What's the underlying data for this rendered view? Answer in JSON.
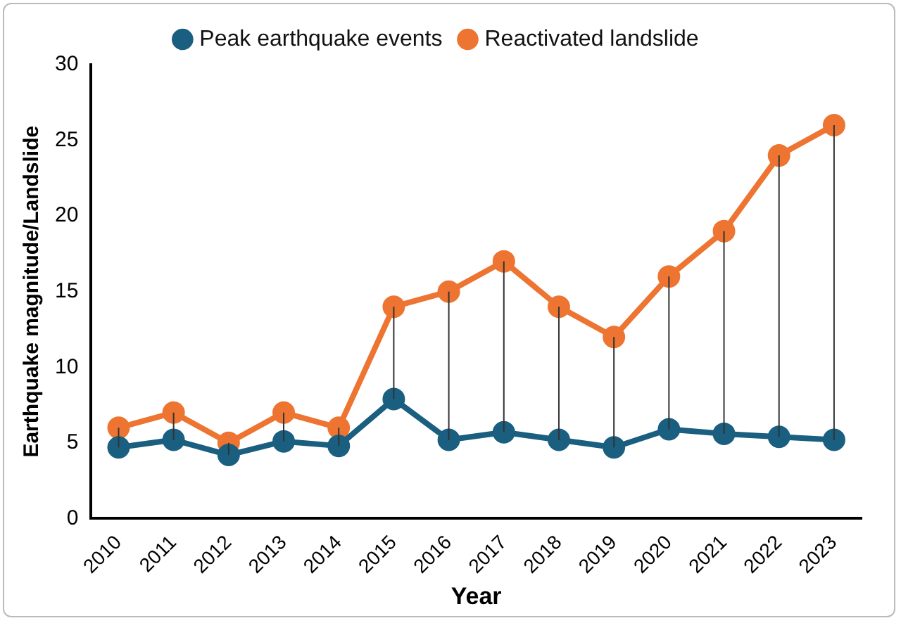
{
  "chart_data": {
    "type": "line",
    "xlabel": "Year",
    "ylabel": "Earthquake magnitude/Landslide",
    "categories": [
      "2010",
      "2011",
      "2012",
      "2013",
      "2014",
      "2015",
      "2016",
      "2017",
      "2018",
      "2019",
      "2020",
      "2021",
      "2022",
      "2023"
    ],
    "series": [
      {
        "name": "Peak earthquake events",
        "color": "#1a5e80",
        "values": [
          4.7,
          5.2,
          4.2,
          5.1,
          4.8,
          7.9,
          5.2,
          5.7,
          5.2,
          4.7,
          5.9,
          5.6,
          5.4,
          5.2
        ]
      },
      {
        "name": "Reactivated landslide",
        "color": "#ed7431",
        "values": [
          6,
          7,
          5,
          7,
          6,
          14,
          15,
          17,
          14,
          12,
          16,
          19,
          24,
          26
        ],
        "errors": [
          [
            4.7,
            6
          ],
          [
            5.2,
            7
          ],
          [
            4.2,
            5
          ],
          [
            5.1,
            7
          ],
          [
            4.8,
            6
          ],
          [
            7.9,
            14
          ],
          [
            5.2,
            15
          ],
          [
            5.7,
            17
          ],
          [
            5.2,
            14
          ],
          [
            4.7,
            12
          ],
          [
            5.9,
            16
          ],
          [
            5.6,
            19
          ],
          [
            5.4,
            24
          ],
          [
            5.2,
            26
          ]
        ]
      }
    ],
    "ylim": [
      0,
      30
    ],
    "yticks": [
      0,
      5,
      10,
      15,
      20,
      25,
      30
    ],
    "grid": false,
    "legend": "top",
    "marker": "circle",
    "line_style": "solid"
  }
}
